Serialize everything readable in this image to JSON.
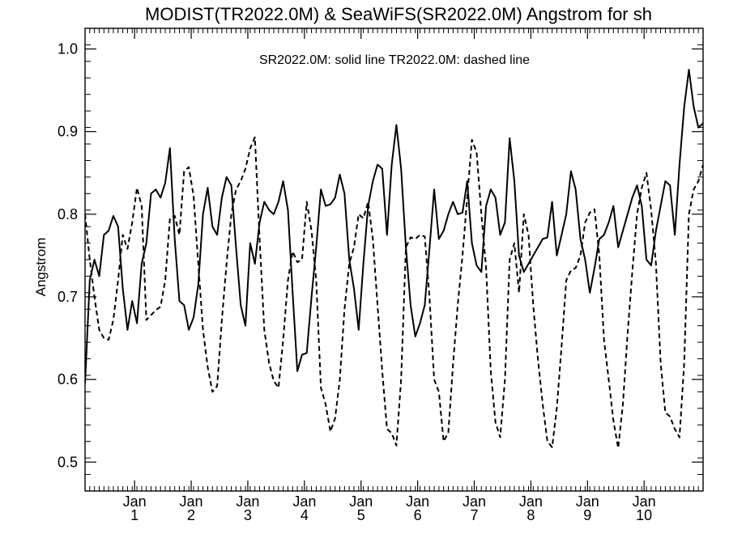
{
  "chart_data": {
    "type": "line",
    "title": "MODIST(TR2022.0M) & SeaWiFS(SR2022.0M)  Angstrom for sh",
    "annotation": "SR2022.0M: solid line   TR2022.0M: dashed line",
    "ylabel": "Angstrom",
    "xlabel": "",
    "ylim": [
      0.465,
      1.025
    ],
    "y_ticks": [
      0.5,
      0.6,
      0.7,
      0.8,
      0.9,
      1.0
    ],
    "y_tick_labels": [
      "0.5",
      "0.6",
      "0.7",
      "0.8",
      "0.9",
      "1.0"
    ],
    "xlim": [
      0,
      131
    ],
    "x_ticks": [
      {
        "x": 10.5,
        "top": "Jan",
        "bottom": "1"
      },
      {
        "x": 22.5,
        "top": "Jan",
        "bottom": "2"
      },
      {
        "x": 34.5,
        "top": "Jan",
        "bottom": "3"
      },
      {
        "x": 46.5,
        "top": "Jan",
        "bottom": "4"
      },
      {
        "x": 58.5,
        "top": "Jan",
        "bottom": "5"
      },
      {
        "x": 70.5,
        "top": "Jan",
        "bottom": "6"
      },
      {
        "x": 82.5,
        "top": "Jan",
        "bottom": "7"
      },
      {
        "x": 94.5,
        "top": "Jan",
        "bottom": "8"
      },
      {
        "x": 106.5,
        "top": "Jan",
        "bottom": "9"
      },
      {
        "x": 118.5,
        "top": "Jan",
        "bottom": "10"
      }
    ],
    "series": [
      {
        "style": "solid",
        "color": "#000000",
        "x": [
          0,
          1,
          2,
          3,
          4,
          5,
          6,
          7,
          8,
          9,
          10,
          11,
          12,
          13,
          14,
          15,
          16,
          17,
          18,
          19,
          20,
          21,
          22,
          23,
          24,
          25,
          26,
          27,
          28,
          29,
          30,
          31,
          32,
          33,
          34,
          35,
          36,
          37,
          38,
          39,
          40,
          41,
          42,
          43,
          44,
          45,
          46,
          47,
          48,
          49,
          50,
          51,
          52,
          53,
          54,
          55,
          56,
          57,
          58,
          59,
          60,
          61,
          62,
          63,
          64,
          65,
          66,
          67,
          68,
          69,
          70,
          71,
          72,
          73,
          74,
          75,
          76,
          77,
          78,
          79,
          80,
          81,
          82,
          83,
          84,
          85,
          86,
          87,
          88,
          89,
          90,
          91,
          92,
          93,
          94,
          95,
          96,
          97,
          98,
          99,
          100,
          101,
          102,
          103,
          104,
          105,
          106,
          107,
          108,
          109,
          110,
          111,
          112,
          113,
          114,
          115,
          116,
          117,
          118,
          119,
          120,
          121,
          122,
          123,
          124,
          125,
          126,
          127,
          128,
          129,
          130,
          131
        ],
        "values": [
          0.595,
          0.72,
          0.745,
          0.725,
          0.775,
          0.78,
          0.798,
          0.785,
          0.71,
          0.66,
          0.695,
          0.668,
          0.74,
          0.765,
          0.825,
          0.83,
          0.82,
          0.838,
          0.88,
          0.77,
          0.695,
          0.69,
          0.66,
          0.675,
          0.715,
          0.8,
          0.832,
          0.785,
          0.775,
          0.82,
          0.845,
          0.835,
          0.76,
          0.69,
          0.665,
          0.765,
          0.74,
          0.79,
          0.815,
          0.805,
          0.8,
          0.815,
          0.84,
          0.805,
          0.705,
          0.61,
          0.63,
          0.632,
          0.7,
          0.76,
          0.83,
          0.81,
          0.812,
          0.82,
          0.848,
          0.825,
          0.745,
          0.71,
          0.66,
          0.74,
          0.81,
          0.84,
          0.86,
          0.855,
          0.775,
          0.86,
          0.908,
          0.855,
          0.76,
          0.69,
          0.652,
          0.668,
          0.69,
          0.758,
          0.83,
          0.77,
          0.78,
          0.8,
          0.815,
          0.8,
          0.802,
          0.84,
          0.765,
          0.738,
          0.73,
          0.81,
          0.83,
          0.82,
          0.775,
          0.79,
          0.892,
          0.84,
          0.75,
          0.73,
          0.74,
          0.75,
          0.76,
          0.77,
          0.772,
          0.815,
          0.75,
          0.775,
          0.8,
          0.852,
          0.83,
          0.77,
          0.745,
          0.705,
          0.735,
          0.77,
          0.775,
          0.79,
          0.81,
          0.76,
          0.78,
          0.8,
          0.82,
          0.835,
          0.81,
          0.745,
          0.738,
          0.78,
          0.81,
          0.84,
          0.835,
          0.775,
          0.86,
          0.93,
          0.975,
          0.93,
          0.905,
          0.91
        ]
      },
      {
        "style": "dashed",
        "color": "#000000",
        "x": [
          0,
          1,
          2,
          3,
          4,
          5,
          6,
          7,
          8,
          9,
          10,
          11,
          12,
          13,
          14,
          15,
          16,
          17,
          18,
          19,
          20,
          21,
          22,
          23,
          24,
          25,
          26,
          27,
          28,
          29,
          30,
          31,
          32,
          33,
          34,
          35,
          36,
          37,
          38,
          39,
          40,
          41,
          42,
          43,
          44,
          45,
          46,
          47,
          48,
          49,
          50,
          51,
          52,
          53,
          54,
          55,
          56,
          57,
          58,
          59,
          60,
          61,
          62,
          63,
          64,
          65,
          66,
          67,
          68,
          69,
          70,
          71,
          72,
          73,
          74,
          75,
          76,
          77,
          78,
          79,
          80,
          81,
          82,
          83,
          84,
          85,
          86,
          87,
          88,
          89,
          90,
          91,
          92,
          93,
          94,
          95,
          96,
          97,
          98,
          99,
          100,
          101,
          102,
          103,
          104,
          105,
          106,
          107,
          108,
          109,
          110,
          111,
          112,
          113,
          114,
          115,
          116,
          117,
          118,
          119,
          120,
          121,
          122,
          123,
          124,
          125,
          126,
          127,
          128,
          129,
          130,
          131
        ],
        "values": [
          0.8,
          0.745,
          0.7,
          0.66,
          0.65,
          0.648,
          0.672,
          0.72,
          0.775,
          0.758,
          0.79,
          0.832,
          0.81,
          0.672,
          0.678,
          0.684,
          0.688,
          0.72,
          0.795,
          0.798,
          0.775,
          0.852,
          0.857,
          0.822,
          0.74,
          0.66,
          0.615,
          0.585,
          0.592,
          0.672,
          0.74,
          0.8,
          0.83,
          0.84,
          0.855,
          0.88,
          0.893,
          0.77,
          0.66,
          0.62,
          0.598,
          0.59,
          0.648,
          0.72,
          0.755,
          0.742,
          0.745,
          0.815,
          0.78,
          0.72,
          0.59,
          0.57,
          0.537,
          0.553,
          0.6,
          0.685,
          0.74,
          0.76,
          0.8,
          0.795,
          0.815,
          0.77,
          0.69,
          0.61,
          0.54,
          0.535,
          0.52,
          0.6,
          0.76,
          0.772,
          0.77,
          0.775,
          0.773,
          0.7,
          0.6,
          0.585,
          0.525,
          0.536,
          0.618,
          0.69,
          0.75,
          0.82,
          0.89,
          0.875,
          0.8,
          0.735,
          0.61,
          0.548,
          0.53,
          0.6,
          0.745,
          0.765,
          0.705,
          0.8,
          0.775,
          0.69,
          0.625,
          0.57,
          0.525,
          0.518,
          0.565,
          0.64,
          0.72,
          0.732,
          0.735,
          0.75,
          0.79,
          0.802,
          0.806,
          0.75,
          0.648,
          0.6,
          0.55,
          0.517,
          0.57,
          0.655,
          0.73,
          0.8,
          0.832,
          0.85,
          0.805,
          0.74,
          0.62,
          0.56,
          0.555,
          0.54,
          0.53,
          0.62,
          0.8,
          0.83,
          0.84,
          0.86
        ]
      }
    ]
  }
}
